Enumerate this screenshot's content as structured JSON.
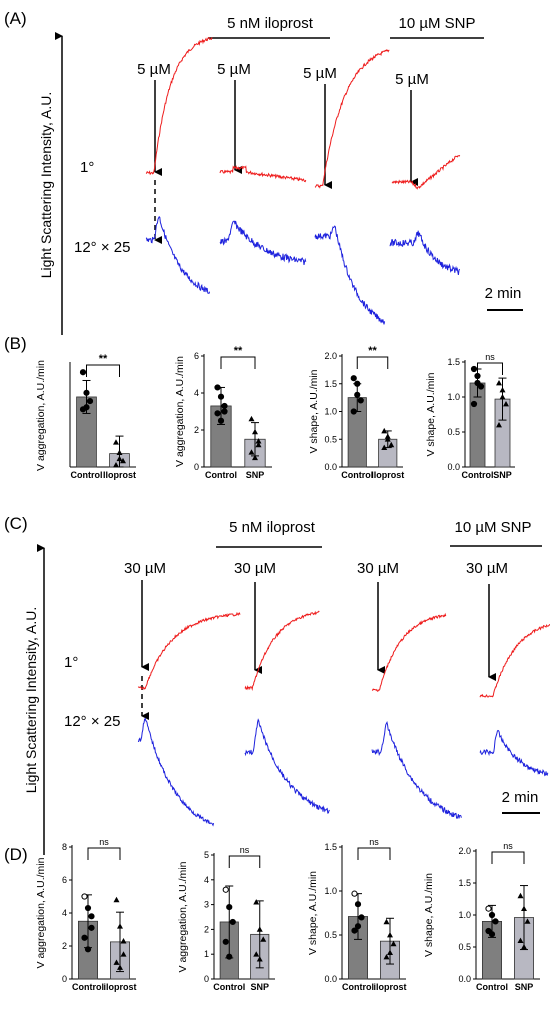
{
  "panel_labels": [
    "(A)",
    "(B)",
    "(C)",
    "(D)"
  ],
  "traces_A": {
    "ylabel": "Light Scattering Intensity, A.U.",
    "groups": [
      "5 nM iloprost",
      "10 µM SNP"
    ],
    "doses": [
      "5 µM",
      "5 µM",
      "5 µM",
      "5 µM"
    ],
    "row_labels": [
      "1°",
      "12° × 25"
    ],
    "scale": "2 min"
  },
  "traces_C": {
    "ylabel": "Light Scattering Intensity, A.U.",
    "groups": [
      "5 nM iloprost",
      "10 µM SNP"
    ],
    "doses": [
      "30 µM",
      "30 µM",
      "30 µM",
      "30 µM"
    ],
    "row_labels": [
      "1°",
      "12° × 25"
    ],
    "scale": "2 min"
  },
  "colors": {
    "aggregation_trace": "#ee1c1c",
    "shape_trace": "#1e22dd",
    "control_bar": "#7f7f7f",
    "treatment_bar": "#b8b8c2"
  },
  "chart_data": [
    {
      "type": "bar",
      "panel": "B",
      "ylabel": "V aggregation, A.U./min",
      "categories": [
        "Control",
        "Iloprost"
      ],
      "values": [
        3.4,
        0.65
      ],
      "errors": [
        0.8,
        0.85
      ],
      "ylim": [
        0,
        5
      ],
      "yticks": [],
      "significance": "**",
      "points": [
        [
          4.6,
          3.6,
          3.2,
          2.8,
          2.9
        ],
        [
          1.2,
          0.7,
          0.3,
          0.1,
          0.4
        ]
      ]
    },
    {
      "type": "bar",
      "panel": "B",
      "ylabel": "V aggregation, A.U./min",
      "categories": [
        "Control",
        "SNP"
      ],
      "values": [
        3.3,
        1.5
      ],
      "errors": [
        1.0,
        0.9
      ],
      "ylim": [
        0,
        6
      ],
      "yticks": [
        "0",
        "2",
        "4",
        "6"
      ],
      "significance": "**",
      "points": [
        [
          4.3,
          3.8,
          3.3,
          2.9,
          2.5,
          3.0
        ],
        [
          2.6,
          1.9,
          1.4,
          0.8,
          0.5,
          1.2
        ]
      ]
    },
    {
      "type": "bar",
      "panel": "B",
      "ylabel": "V shape, A.U./min",
      "categories": [
        "Control",
        "Iloprost"
      ],
      "values": [
        1.25,
        0.5
      ],
      "errors": [
        0.25,
        0.15
      ],
      "ylim": [
        0,
        2
      ],
      "yticks": [
        "0.0",
        "0.5",
        "1.0",
        "1.5",
        "2.0"
      ],
      "significance": "**",
      "points": [
        [
          1.6,
          1.5,
          1.2,
          1.0,
          1.3
        ],
        [
          0.65,
          0.55,
          0.4,
          0.35,
          0.5
        ]
      ]
    },
    {
      "type": "bar",
      "panel": "B",
      "ylabel": "V shape, A.U./min",
      "categories": [
        "Control",
        "SNP"
      ],
      "values": [
        1.2,
        0.97
      ],
      "errors": [
        0.2,
        0.3
      ],
      "ylim": [
        0,
        1.5
      ],
      "yticks": [
        "0.0",
        "0.5",
        "1.0",
        "1.5"
      ],
      "significance": "ns",
      "points": [
        [
          1.4,
          1.3,
          1.15,
          0.9,
          1.2
        ],
        [
          1.2,
          1.1,
          0.9,
          0.6,
          1.0
        ]
      ]
    },
    {
      "type": "bar",
      "panel": "D",
      "ylabel": "V aggregation, A.U./min",
      "categories": [
        "Control",
        "iloprost"
      ],
      "values": [
        3.5,
        2.25
      ],
      "errors": [
        1.6,
        1.8
      ],
      "ylim": [
        0,
        8
      ],
      "yticks": [
        "0",
        "2",
        "4",
        "6",
        "8"
      ],
      "significance": "ns",
      "points": [
        [
          5.0,
          4.3,
          3.1,
          2.5,
          1.8,
          3.8
        ],
        [
          4.8,
          3.2,
          1.5,
          1.0,
          0.7,
          2.3
        ]
      ]
    },
    {
      "type": "bar",
      "panel": "D",
      "ylabel": "V aggregation, A.U./min",
      "categories": [
        "Control",
        "SNP"
      ],
      "values": [
        2.3,
        1.8
      ],
      "errors": [
        1.45,
        1.35
      ],
      "ylim": [
        0,
        5
      ],
      "yticks": [
        "0",
        "1",
        "2",
        "3",
        "4",
        "5"
      ],
      "significance": "ns",
      "points": [
        [
          3.6,
          2.9,
          2.3,
          1.5,
          0.9
        ],
        [
          3.1,
          2.0,
          1.6,
          1.0,
          0.8
        ]
      ]
    },
    {
      "type": "bar",
      "panel": "D",
      "ylabel": "V shape, A.U./min",
      "categories": [
        "Control",
        "iloprost"
      ],
      "values": [
        0.71,
        0.43
      ],
      "errors": [
        0.26,
        0.26
      ],
      "ylim": [
        0,
        1.5
      ],
      "yticks": [
        "0.0",
        "0.5",
        "1.0",
        "1.5"
      ],
      "significance": "ns",
      "points": [
        [
          0.97,
          0.85,
          0.7,
          0.55,
          0.6
        ],
        [
          0.65,
          0.5,
          0.4,
          0.25,
          0.3
        ]
      ]
    },
    {
      "type": "bar",
      "panel": "D",
      "ylabel": "V shape, A.U./min",
      "categories": [
        "Control",
        "SNP"
      ],
      "values": [
        0.9,
        0.96
      ],
      "errors": [
        0.25,
        0.5
      ],
      "ylim": [
        0,
        2
      ],
      "yticks": [
        "0.0",
        "0.5",
        "1.0",
        "1.5",
        "2.0"
      ],
      "significance": "ns",
      "points": [
        [
          1.1,
          1.0,
          0.9,
          0.75,
          0.7
        ],
        [
          1.3,
          1.1,
          0.9,
          0.6,
          0.5
        ]
      ]
    }
  ]
}
